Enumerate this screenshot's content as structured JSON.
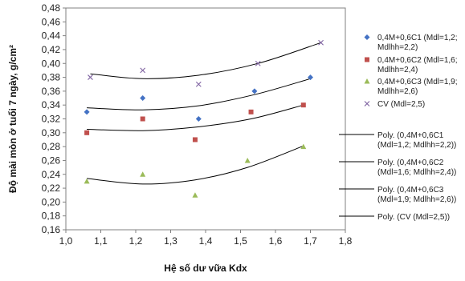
{
  "chart_data": {
    "type": "scatter",
    "xlabel": "Hệ số dư vữa Kdx",
    "ylabel": "Độ mài mòn ở tuổi 7 ngày, g/cm²",
    "xlim": [
      1.0,
      1.8
    ],
    "ylim": [
      0.16,
      0.48
    ],
    "x_ticks": [
      "1,0",
      "1,1",
      "1,2",
      "1,3",
      "1,4",
      "1,5",
      "1,6",
      "1,7",
      "1,8"
    ],
    "y_ticks": [
      "0,16",
      "0,18",
      "0,20",
      "0,22",
      "0,24",
      "0,26",
      "0,28",
      "0,30",
      "0,32",
      "0,34",
      "0,36",
      "0,38",
      "0,40",
      "0,42",
      "0,44",
      "0,46",
      "0,48"
    ],
    "grid": false,
    "legend_position": "right",
    "series": [
      {
        "name": "0,4M+0,6C1 (Mdl=1,2; Mdlhh=2,2)",
        "legend_lines": [
          "0,4M+0,6C1 (Mdl=1,2;",
          "Mdlhh=2,2)"
        ],
        "marker": "diamond",
        "color": "#4472C4",
        "x": [
          1.06,
          1.22,
          1.38,
          1.54,
          1.7
        ],
        "y": [
          0.33,
          0.35,
          0.32,
          0.36,
          0.38
        ]
      },
      {
        "name": "0,4M+0,6C2 (Mdl=1,6; Mdlhh=2,4)",
        "legend_lines": [
          "0,4M+0,6C2 (Mdl=1,6;",
          "Mdlhh=2,4)"
        ],
        "marker": "square",
        "color": "#C0504D",
        "x": [
          1.06,
          1.22,
          1.37,
          1.53,
          1.68
        ],
        "y": [
          0.3,
          0.32,
          0.29,
          0.33,
          0.34
        ]
      },
      {
        "name": "0,4M+0,6C3 (Mdl=1,9; Mdlhh=2,6)",
        "legend_lines": [
          "0,4M+0,6C3 (Mdl=1,9;",
          "Mdlhh=2,6)"
        ],
        "marker": "triangle",
        "color": "#9BBB59",
        "x": [
          1.06,
          1.22,
          1.37,
          1.52,
          1.68
        ],
        "y": [
          0.23,
          0.24,
          0.21,
          0.26,
          0.28
        ]
      },
      {
        "name": "CV (Mdl=2,5)",
        "legend_lines": [
          "CV (Mdl=2,5)"
        ],
        "marker": "x",
        "color": "#8064A2",
        "x": [
          1.07,
          1.22,
          1.38,
          1.55,
          1.73
        ],
        "y": [
          0.38,
          0.39,
          0.37,
          0.4,
          0.43
        ]
      }
    ],
    "trendlines": [
      {
        "name": "Poly. (0,4M+0,6C1 (Mdl=1,2; Mdlhh=2,2))",
        "legend_lines": [
          "Poly. (0,4M+0,6C1",
          "(Mdl=1,2; Mdlhh=2,2))"
        ],
        "x": [
          1.06,
          1.22,
          1.38,
          1.54,
          1.7
        ],
        "y": [
          0.336,
          0.333,
          0.339,
          0.355,
          0.378
        ],
        "color": "#000000"
      },
      {
        "name": "Poly. (0,4M+0,6C2 (Mdl=1,6; Mdlhh=2,4))",
        "legend_lines": [
          "Poly. (0,4M+0,6C2",
          "(Mdl=1,6; Mdlhh=2,4))"
        ],
        "x": [
          1.06,
          1.22,
          1.37,
          1.53,
          1.68
        ],
        "y": [
          0.305,
          0.303,
          0.308,
          0.32,
          0.34
        ],
        "color": "#000000"
      },
      {
        "name": "Poly. (0,4M+0,6C3 (Mdl=1,9; Mdlhh=2,6))",
        "legend_lines": [
          "Poly. (0,4M+0,6C3",
          "(Mdl=1,9; Mdlhh=2,6))"
        ],
        "x": [
          1.06,
          1.22,
          1.37,
          1.52,
          1.68
        ],
        "y": [
          0.234,
          0.226,
          0.232,
          0.25,
          0.281
        ],
        "color": "#000000"
      },
      {
        "name": "Poly. (CV (Mdl=2,5))",
        "legend_lines": [
          "Poly. (CV (Mdl=2,5))"
        ],
        "x": [
          1.07,
          1.22,
          1.38,
          1.55,
          1.73
        ],
        "y": [
          0.385,
          0.378,
          0.383,
          0.4,
          0.43
        ],
        "color": "#000000"
      }
    ]
  }
}
